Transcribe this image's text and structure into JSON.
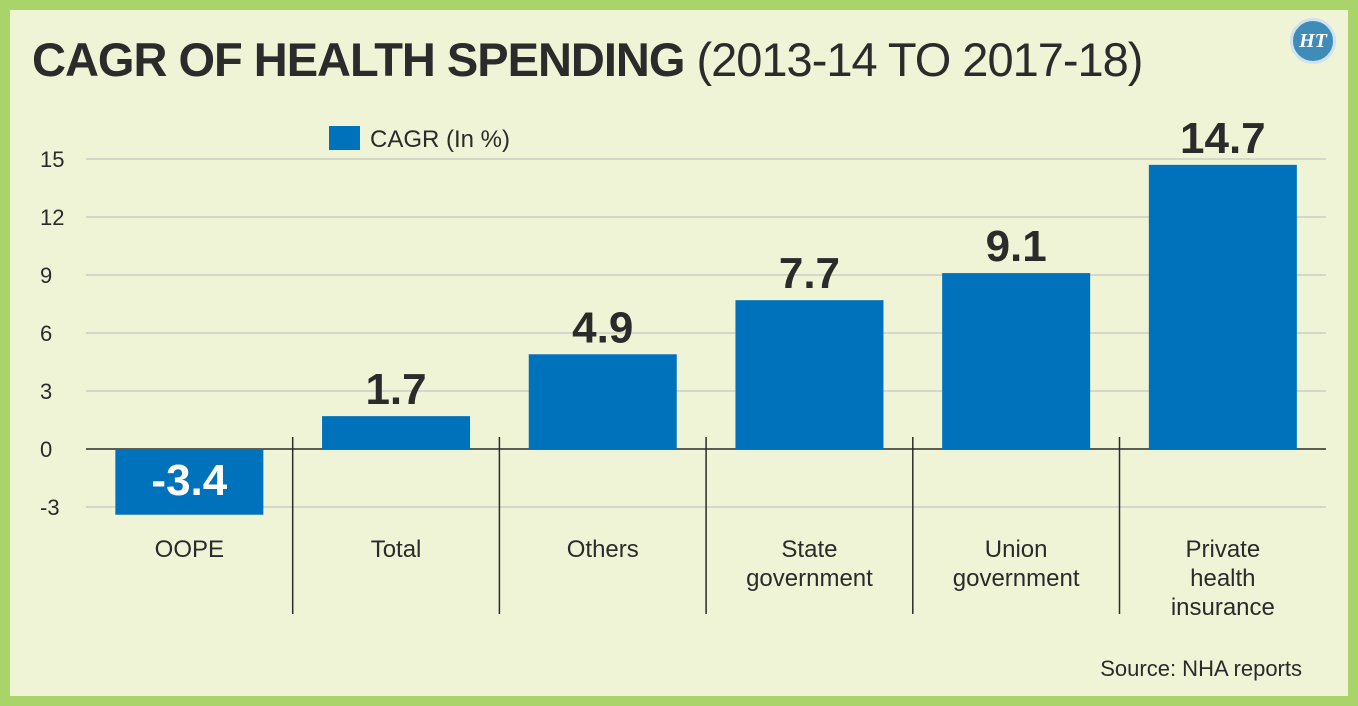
{
  "header": {
    "title_main": "CAGR OF HEALTH SPENDING",
    "title_sub": "(2013-14 TO 2017-18)",
    "logo_text": "HT",
    "logo_icon": "ht-logo-icon"
  },
  "footer": {
    "source": "Source: NHA reports"
  },
  "colors": {
    "bar": "#0072bc",
    "background": "#eef4d5",
    "border": "#a9d46a",
    "text": "#2b2b2b",
    "gridline": "#bcbcbc"
  },
  "chart_data": {
    "type": "bar",
    "title": "CAGR OF HEALTH SPENDING (2013-14 TO 2017-18)",
    "categories": [
      [
        "OOPE"
      ],
      [
        "Total"
      ],
      [
        "Others"
      ],
      [
        "State",
        "government"
      ],
      [
        "Union",
        "government"
      ],
      [
        "Private",
        "health",
        "insurance"
      ]
    ],
    "series": [
      {
        "name": "CAGR  (In %)",
        "values": [
          -3.4,
          1.7,
          4.9,
          7.7,
          9.1,
          14.7
        ],
        "labels": [
          "-3.4",
          "1.7",
          "4.9",
          "7.7",
          "9.1",
          "14.7"
        ]
      }
    ],
    "yticks": [
      15,
      12,
      9,
      6,
      3,
      0,
      -3
    ],
    "ylim": [
      -3,
      15
    ],
    "grid": true,
    "legend": "top-left"
  }
}
